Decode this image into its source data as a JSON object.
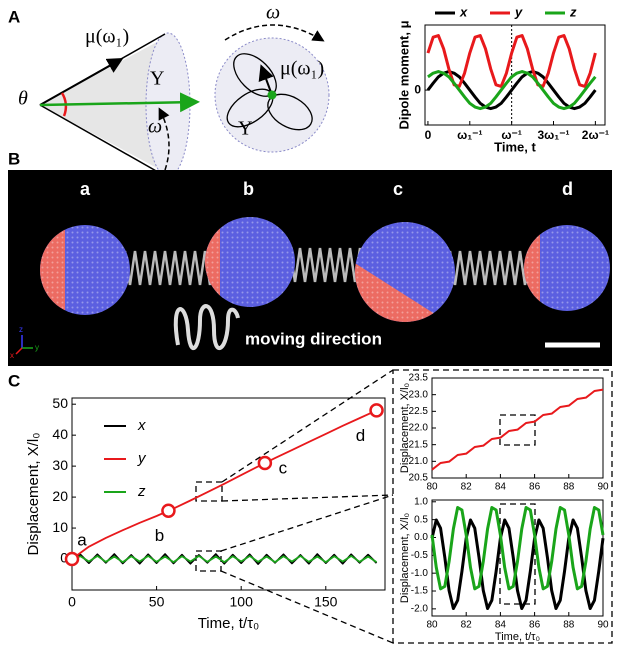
{
  "panel_labels": [
    "A",
    "B",
    "C"
  ],
  "cone_diagram": {
    "theta": "θ",
    "mu": "μ(ω₁)",
    "y_label": "Y",
    "omega": "ω"
  },
  "lobe_diagram": {
    "omega": "ω",
    "mu": "μ(ω₁)",
    "y_label": "Y"
  },
  "panel_b": {
    "labels": [
      "a",
      "b",
      "c",
      "d"
    ],
    "moving": "moving direction",
    "axes": {
      "x": "x",
      "y": "y",
      "z": "z"
    }
  },
  "chart_data": [
    {
      "type": "line",
      "ylabel": "Dipole moment, μ",
      "xlabel": "Time, t",
      "legend": "top",
      "xlim": [
        -0.07,
        4.23
      ],
      "ylim": [
        -0.66,
        1.23
      ],
      "xticks": [
        0,
        {
          "value": 1,
          "label": "ω₁⁻¹"
        },
        {
          "value": 2,
          "label": "ω⁻¹"
        },
        {
          "value": 3,
          "label": "3ω₁⁻¹"
        },
        {
          "value": 4,
          "label": "2ω⁻¹"
        }
      ],
      "yticks": [
        0
      ],
      "vline": 2,
      "x": [
        0,
        0.125,
        0.25,
        0.375,
        0.5,
        0.625,
        0.75,
        0.875,
        1,
        1.125,
        1.25,
        1.375,
        1.5,
        1.625,
        1.75,
        1.875,
        2,
        2.125,
        2.25,
        2.375,
        2.5,
        2.625,
        2.75,
        2.875,
        3,
        3.125,
        3.25,
        3.375,
        3.5,
        3.625,
        3.75,
        3.875,
        4
      ],
      "series": [
        {
          "name": "x",
          "color": "#000000",
          "values": [
            0,
            0.13,
            0.25,
            0.32,
            0.35,
            0.32,
            0.25,
            0.13,
            0,
            -0.13,
            -0.25,
            -0.32,
            -0.35,
            -0.32,
            -0.25,
            -0.13,
            0,
            0.13,
            0.25,
            0.32,
            0.35,
            0.32,
            0.25,
            0.13,
            0,
            -0.13,
            -0.25,
            -0.32,
            -0.35,
            -0.32,
            -0.25,
            -0.13,
            0
          ]
        },
        {
          "name": "y",
          "color": "#e8191c",
          "values": [
            0.7,
            1.0,
            1.03,
            0.78,
            0.4,
            0.1,
            0.07,
            0.32,
            0.7,
            1.0,
            1.03,
            0.78,
            0.4,
            0.1,
            0.07,
            0.32,
            0.7,
            1.0,
            1.03,
            0.78,
            0.4,
            0.1,
            0.07,
            0.32,
            0.7,
            1.0,
            1.03,
            0.78,
            0.4,
            0.1,
            0.07,
            0.32,
            0.7
          ]
        },
        {
          "name": "z",
          "color": "#1aa51a",
          "values": [
            0.25,
            0.32,
            0.35,
            0.32,
            0.25,
            0.13,
            0,
            -0.13,
            -0.25,
            -0.32,
            -0.35,
            -0.32,
            -0.25,
            -0.13,
            0,
            0.13,
            0.25,
            0.32,
            0.35,
            0.32,
            0.25,
            0.13,
            0,
            -0.13,
            -0.25,
            -0.32,
            -0.35,
            -0.32,
            -0.25,
            -0.13,
            0,
            0.13,
            0.25
          ]
        }
      ]
    },
    {
      "type": "line",
      "ylabel": "Displacement, X/l₀",
      "xlabel": "Time, t/τ₀",
      "legend": "left",
      "xlim": [
        0,
        185
      ],
      "ylim": [
        -10,
        52
      ],
      "xticks": [
        0,
        50,
        100,
        150
      ],
      "yticks": [
        0,
        10,
        20,
        30,
        40,
        50
      ],
      "series": [
        {
          "name": "x",
          "color": "#000000",
          "x": [
            0,
            5,
            10,
            15,
            20,
            25,
            30,
            35,
            40,
            45,
            50,
            55,
            60,
            65,
            70,
            75,
            80,
            85,
            90,
            95,
            100,
            105,
            110,
            115,
            120,
            125,
            130,
            135,
            140,
            145,
            150,
            155,
            160,
            165,
            170,
            175,
            180
          ],
          "values": [
            0,
            1.4,
            -1.3,
            1.5,
            -1.2,
            1.6,
            -1.4,
            1.3,
            -1.5,
            1.5,
            -1.3,
            1.6,
            -1.4,
            1.4,
            -1.5,
            1.3,
            -1.2,
            1.6,
            -1.5,
            1.4,
            -1.3,
            1.5,
            -1.6,
            1.4,
            -1.2,
            1.5,
            -1.4,
            1.3,
            -1.5,
            1.6,
            -1.3,
            1.4,
            -1.5,
            1.5,
            -1.2,
            1.4,
            -1.3
          ]
        },
        {
          "name": "y",
          "color": "#e8191c",
          "x": [
            0,
            10,
            20,
            30,
            40,
            50,
            60,
            70,
            80,
            90,
            100,
            110,
            120,
            130,
            140,
            150,
            160,
            170,
            180
          ],
          "values": [
            0,
            4,
            6.8,
            9.3,
            11.7,
            13.9,
            16.3,
            18.9,
            21.6,
            24.3,
            27.1,
            29.9,
            32.6,
            35.2,
            37.8,
            40.4,
            43.0,
            45.5,
            48
          ]
        },
        {
          "name": "z",
          "color": "#1aa51a",
          "x": [
            0,
            5,
            10,
            15,
            20,
            25,
            30,
            35,
            40,
            45,
            50,
            55,
            60,
            65,
            70,
            75,
            80,
            85,
            90,
            95,
            100,
            105,
            110,
            115,
            120,
            125,
            130,
            135,
            140,
            145,
            150,
            155,
            160,
            165,
            170,
            175,
            180
          ],
          "values": [
            0,
            0.9,
            -0.8,
            1.0,
            -0.9,
            0.8,
            -1.0,
            0.9,
            -0.8,
            1.0,
            -0.9,
            0.8,
            -1.0,
            0.9,
            -0.8,
            1.0,
            -0.9,
            0.8,
            -1.0,
            0.9,
            -0.8,
            1.0,
            -0.9,
            0.8,
            -1.0,
            0.9,
            -0.8,
            1.0,
            -0.9,
            0.8,
            -1.0,
            0.9,
            -0.8,
            1.0,
            -0.9,
            0.8,
            -1.0
          ]
        }
      ],
      "markers": {
        "x": [
          0,
          57,
          114,
          180
        ],
        "y": [
          0,
          15.6,
          31.0,
          48
        ],
        "labels": [
          "a",
          "b",
          "c",
          "d"
        ],
        "color": "#e8191c"
      }
    },
    {
      "type": "line",
      "ylabel": "Displacement, X/l₀",
      "xlim": [
        80,
        90
      ],
      "ylim": [
        20.5,
        23.5
      ],
      "xticks": [
        80,
        82,
        84,
        86,
        88,
        90
      ],
      "yticks": [
        20.5,
        {
          "value": 21,
          "label": "21.0"
        },
        21.5,
        {
          "value": 22,
          "label": "22.0"
        },
        22.5,
        {
          "value": 23,
          "label": "23.0"
        },
        23.5
      ],
      "x": [
        80,
        80.5,
        81,
        81.5,
        82,
        82.5,
        83,
        83.5,
        84,
        84.5,
        85,
        85.5,
        86,
        86.5,
        87,
        87.5,
        88,
        88.5,
        89,
        89.5,
        90
      ],
      "series": [
        {
          "color": "#e8191c",
          "values": [
            20.75,
            20.95,
            20.99,
            21.19,
            21.23,
            21.43,
            21.47,
            21.67,
            21.71,
            21.91,
            21.95,
            22.15,
            22.19,
            22.39,
            22.43,
            22.63,
            22.67,
            22.87,
            22.91,
            23.11,
            23.15
          ]
        }
      ]
    },
    {
      "type": "line",
      "ylabel": "Displacement, X/l₀",
      "xlabel": "Time, t/τ₀",
      "xlim": [
        80,
        90
      ],
      "ylim": [
        -2.2,
        1.05
      ],
      "xticks": [
        80,
        82,
        84,
        86,
        88,
        90
      ],
      "yticks": [
        {
          "value": -2,
          "label": "-2.0"
        },
        -1.5,
        {
          "value": -1,
          "label": "-1.0"
        },
        -0.5,
        {
          "value": 0,
          "label": "0.0"
        },
        0.5,
        {
          "value": 1,
          "label": "1.0"
        }
      ],
      "x": [
        80,
        80.25,
        80.5,
        80.75,
        81,
        81.25,
        81.5,
        81.75,
        82,
        82.25,
        82.5,
        82.75,
        83,
        83.25,
        83.5,
        83.75,
        84,
        84.25,
        84.5,
        84.75,
        85,
        85.25,
        85.5,
        85.75,
        86,
        86.25,
        86.5,
        86.75,
        87,
        87.25,
        87.5,
        87.75,
        88,
        88.25,
        88.5,
        88.75,
        89,
        89.25,
        89.5,
        89.75,
        90
      ],
      "series": [
        {
          "color": "#000000",
          "values": [
            -0.02,
            0.49,
            0.26,
            -0.56,
            -1.49,
            -1.99,
            -1.76,
            -0.95,
            -0.02,
            0.49,
            0.26,
            -0.56,
            -1.49,
            -1.99,
            -1.76,
            -0.95,
            -0.02,
            0.49,
            0.26,
            -0.56,
            -1.49,
            -1.99,
            -1.76,
            -0.95,
            -0.02,
            0.49,
            0.26,
            -0.56,
            -1.49,
            -1.99,
            -1.76,
            -0.95,
            -0.02,
            0.49,
            0.26,
            -0.56,
            -1.49,
            -1.99,
            -1.76,
            -0.95,
            -0.02
          ]
        },
        {
          "color": "#1aa51a",
          "values": [
            0.07,
            -0.84,
            -1.44,
            -1.37,
            -0.67,
            0.24,
            0.84,
            0.77,
            0.07,
            -0.84,
            -1.44,
            -1.37,
            -0.67,
            0.24,
            0.84,
            0.77,
            0.07,
            -0.84,
            -1.44,
            -1.37,
            -0.67,
            0.24,
            0.84,
            0.77,
            0.07,
            -0.84,
            -1.44,
            -1.37,
            -0.67,
            0.24,
            0.84,
            0.77,
            0.07,
            -0.84,
            -1.44,
            -1.37,
            -0.67,
            0.24,
            0.84,
            0.77,
            0.07
          ]
        }
      ]
    }
  ]
}
